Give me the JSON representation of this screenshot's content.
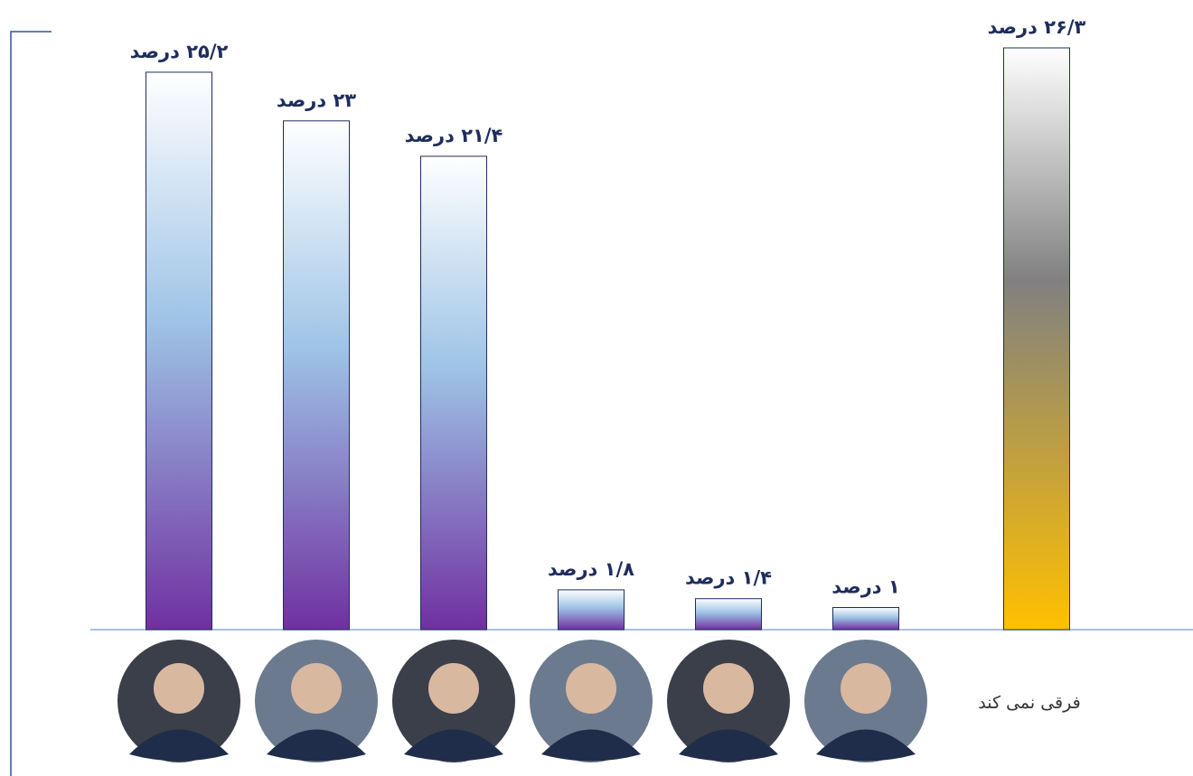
{
  "chart_data": {
    "type": "bar",
    "categories": [
      null,
      null,
      null,
      null,
      null,
      null,
      "فرقی نمی کند"
    ],
    "values": [
      25.2,
      23,
      21.4,
      1.8,
      1.4,
      1,
      26.3
    ],
    "value_labels": [
      "۲۵/۲ درصد",
      "۲۳ درصد",
      "۲۱/۴ درصد",
      "۱/۸ درصد",
      "۱/۴ درصد",
      "۱ درصد",
      "۲۶/۳ درصد"
    ],
    "colors": [
      "#7030a0",
      "#7030a0",
      "#7030a0",
      "#7030a0",
      "#7030a0",
      "#7030a0",
      "#ffc000"
    ]
  }
}
